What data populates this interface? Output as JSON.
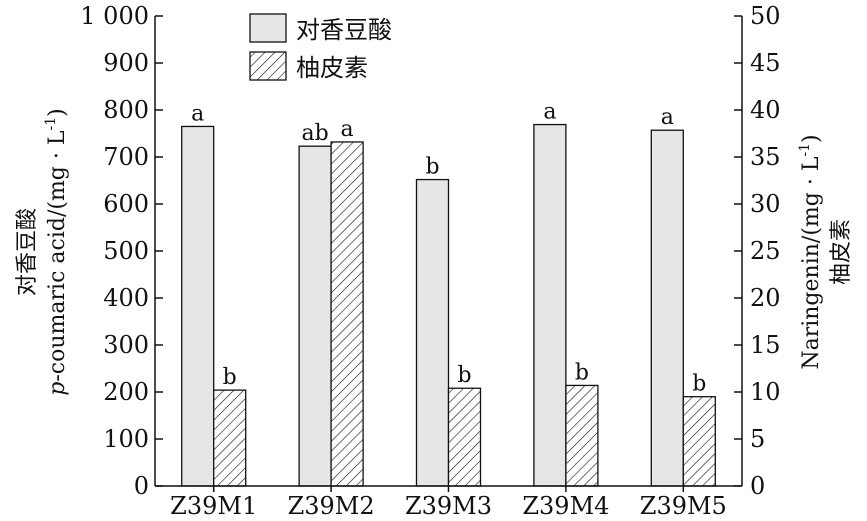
{
  "chart_data": {
    "type": "bar",
    "categories": [
      "Z39M1",
      "Z39M2",
      "Z39M3",
      "Z39M4",
      "Z39M5"
    ],
    "series": [
      {
        "name": "对香豆酸",
        "axis": "left",
        "values": [
          765,
          723,
          652,
          769,
          757
        ],
        "sig": [
          "a",
          "ab",
          "b",
          "a",
          "a"
        ],
        "fill": "#e6e6e6",
        "pattern": "solid"
      },
      {
        "name": "柚皮素",
        "axis": "right",
        "values": [
          10.2,
          36.6,
          10.4,
          10.7,
          9.5
        ],
        "sig": [
          "b",
          "a",
          "b",
          "b",
          "b"
        ],
        "fill": "#ffffff",
        "pattern": "hatch"
      }
    ],
    "left_axis": {
      "label_cn": "对香豆酸",
      "label_en_prefix": "p",
      "label_en_rest": "-coumaric acid/(mg · L",
      "label_sup": "-1",
      "label_close": ")",
      "ylim": [
        0,
        1000
      ],
      "ticks": [
        0,
        100,
        200,
        300,
        400,
        500,
        600,
        700,
        800,
        900,
        1000
      ],
      "tick_labels": [
        "0",
        "100",
        "200",
        "300",
        "400",
        "500",
        "600",
        "700",
        "800",
        "900",
        "1 000"
      ]
    },
    "right_axis": {
      "label_cn": "柚皮素",
      "label_en": "Naringenin/(mg · L",
      "label_sup": "-1",
      "label_close": ")",
      "ylim": [
        0,
        50
      ],
      "ticks": [
        0,
        5,
        10,
        15,
        20,
        25,
        30,
        35,
        40,
        45,
        50
      ],
      "tick_labels": [
        "0",
        "5",
        "10",
        "15",
        "20",
        "25",
        "30",
        "35",
        "40",
        "45",
        "50"
      ]
    },
    "legend_position": "top-center",
    "grid": false
  }
}
